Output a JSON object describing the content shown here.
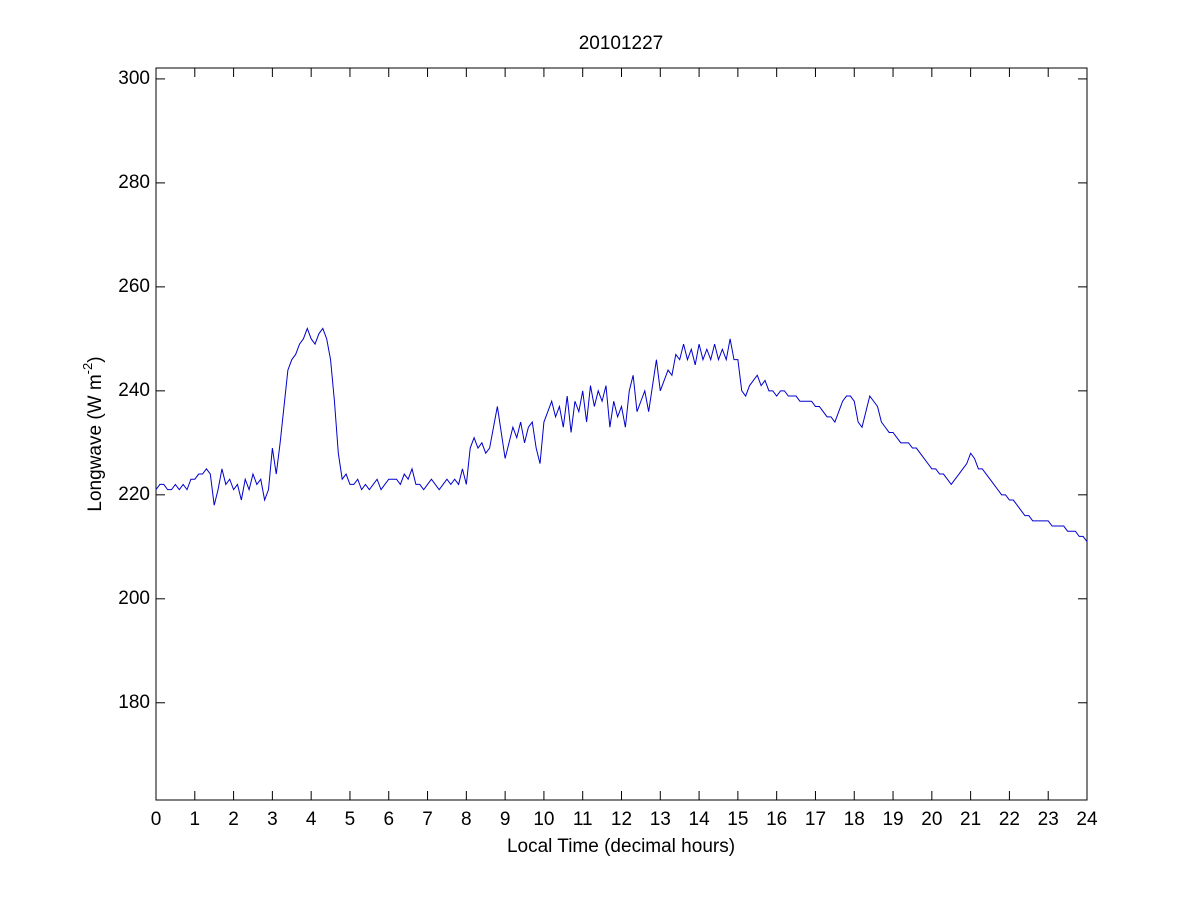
{
  "chart_data": {
    "type": "line",
    "title": "20101227",
    "x_label": "Local Time (decimal hours)",
    "y_label": [
      "Longwave (W m",
      "-2",
      ")"
    ],
    "xlim": [
      0,
      24
    ],
    "xticks": [
      0,
      1,
      2,
      3,
      4,
      5,
      6,
      7,
      8,
      9,
      10,
      11,
      12,
      13,
      14,
      15,
      16,
      17,
      18,
      19,
      20,
      21,
      22,
      23,
      24
    ],
    "ylim": [
      161.3,
      302.1
    ],
    "yticks": [
      180,
      200,
      220,
      240,
      260,
      280,
      300
    ],
    "grid": false,
    "series": [
      {
        "name": "Longwave",
        "color": "#0000cc",
        "x": [
          0,
          0.1,
          0.2,
          0.3,
          0.4,
          0.5,
          0.6,
          0.7,
          0.8,
          0.9,
          1,
          1.1,
          1.2,
          1.3,
          1.4,
          1.5,
          1.6,
          1.7,
          1.8,
          1.9,
          2,
          2.1,
          2.2,
          2.3,
          2.4,
          2.5,
          2.6,
          2.7,
          2.8,
          2.9,
          3,
          3.1,
          3.2,
          3.3,
          3.4,
          3.5,
          3.6,
          3.7,
          3.8,
          3.9,
          4,
          4.1,
          4.2,
          4.3,
          4.4,
          4.5,
          4.6,
          4.7,
          4.8,
          4.9,
          5,
          5.1,
          5.2,
          5.3,
          5.4,
          5.5,
          5.6,
          5.7,
          5.8,
          5.9,
          6,
          6.1,
          6.2,
          6.3,
          6.4,
          6.5,
          6.6,
          6.7,
          6.8,
          6.9,
          7,
          7.1,
          7.2,
          7.3,
          7.4,
          7.5,
          7.6,
          7.7,
          7.8,
          7.9,
          8,
          8.1,
          8.2,
          8.3,
          8.4,
          8.5,
          8.6,
          8.7,
          8.8,
          8.9,
          9,
          9.1,
          9.2,
          9.3,
          9.4,
          9.5,
          9.6,
          9.7,
          9.8,
          9.9,
          10,
          10.1,
          10.2,
          10.3,
          10.4,
          10.5,
          10.6,
          10.7,
          10.8,
          10.9,
          11,
          11.1,
          11.2,
          11.3,
          11.4,
          11.5,
          11.6,
          11.7,
          11.8,
          11.9,
          12,
          12.1,
          12.2,
          12.3,
          12.4,
          12.5,
          12.6,
          12.7,
          12.8,
          12.9,
          13,
          13.1,
          13.2,
          13.3,
          13.4,
          13.5,
          13.6,
          13.7,
          13.8,
          13.9,
          14,
          14.1,
          14.2,
          14.3,
          14.4,
          14.5,
          14.6,
          14.7,
          14.8,
          14.9,
          15,
          15.1,
          15.2,
          15.3,
          15.4,
          15.5,
          15.6,
          15.7,
          15.8,
          15.9,
          16,
          16.1,
          16.2,
          16.3,
          16.4,
          16.5,
          16.6,
          16.7,
          16.8,
          16.9,
          17,
          17.1,
          17.2,
          17.3,
          17.4,
          17.5,
          17.6,
          17.7,
          17.8,
          17.9,
          18,
          18.1,
          18.2,
          18.3,
          18.4,
          18.5,
          18.6,
          18.7,
          18.8,
          18.9,
          19,
          19.1,
          19.2,
          19.3,
          19.4,
          19.5,
          19.6,
          19.7,
          19.8,
          19.9,
          20,
          20.1,
          20.2,
          20.3,
          20.4,
          20.5,
          20.6,
          20.7,
          20.8,
          20.9,
          21,
          21.1,
          21.2,
          21.3,
          21.4,
          21.5,
          21.6,
          21.7,
          21.8,
          21.9,
          22,
          22.1,
          22.2,
          22.3,
          22.4,
          22.5,
          22.6,
          22.7,
          22.8,
          22.9,
          23,
          23.1,
          23.2,
          23.3,
          23.4,
          23.5,
          23.6,
          23.7,
          23.8,
          23.9,
          24
        ],
        "values": [
          221,
          222,
          222,
          221,
          221,
          222,
          221,
          222,
          221,
          223,
          223,
          224,
          224,
          225,
          224,
          218,
          221,
          225,
          222,
          223,
          221,
          222,
          219,
          223,
          221,
          224,
          222,
          223,
          219,
          221,
          229,
          224,
          230,
          237,
          244,
          246,
          247,
          249,
          250,
          252,
          250,
          249,
          251,
          252,
          250,
          246,
          238,
          228,
          223,
          224,
          222,
          222,
          223,
          221,
          222,
          221,
          222,
          223,
          221,
          222,
          223,
          223,
          223,
          222,
          224,
          223,
          225,
          222,
          222,
          221,
          222,
          223,
          222,
          221,
          222,
          223,
          222,
          223,
          222,
          225,
          222,
          229,
          231,
          229,
          230,
          228,
          229,
          233,
          237,
          232,
          227,
          230,
          233,
          231,
          234,
          230,
          233,
          234,
          229,
          226,
          234,
          236,
          238,
          235,
          237,
          233,
          239,
          232,
          238,
          236,
          240,
          234,
          241,
          237,
          240,
          238,
          241,
          233,
          238,
          235,
          237,
          233,
          240,
          243,
          236,
          238,
          240,
          236,
          241,
          246,
          240,
          242,
          244,
          243,
          247,
          246,
          249,
          246,
          248,
          245,
          249,
          246,
          248,
          246,
          249,
          246,
          248,
          246,
          250,
          246,
          246,
          240,
          239,
          241,
          242,
          243,
          241,
          242,
          240,
          240,
          239,
          240,
          240,
          239,
          239,
          239,
          238,
          238,
          238,
          238,
          237,
          237,
          236,
          235,
          235,
          234,
          236,
          238,
          239,
          239,
          238,
          234,
          233,
          236,
          239,
          238,
          237,
          234,
          233,
          232,
          232,
          231,
          230,
          230,
          230,
          229,
          229,
          228,
          227,
          226,
          225,
          225,
          224,
          224,
          223,
          222,
          223,
          224,
          225,
          226,
          228,
          227,
          225,
          225,
          224,
          223,
          222,
          221,
          220,
          220,
          219,
          219,
          218,
          217,
          216,
          216,
          215,
          215,
          215,
          215,
          215,
          214,
          214,
          214,
          214,
          213,
          213,
          213,
          212,
          212,
          211
        ]
      }
    ]
  }
}
